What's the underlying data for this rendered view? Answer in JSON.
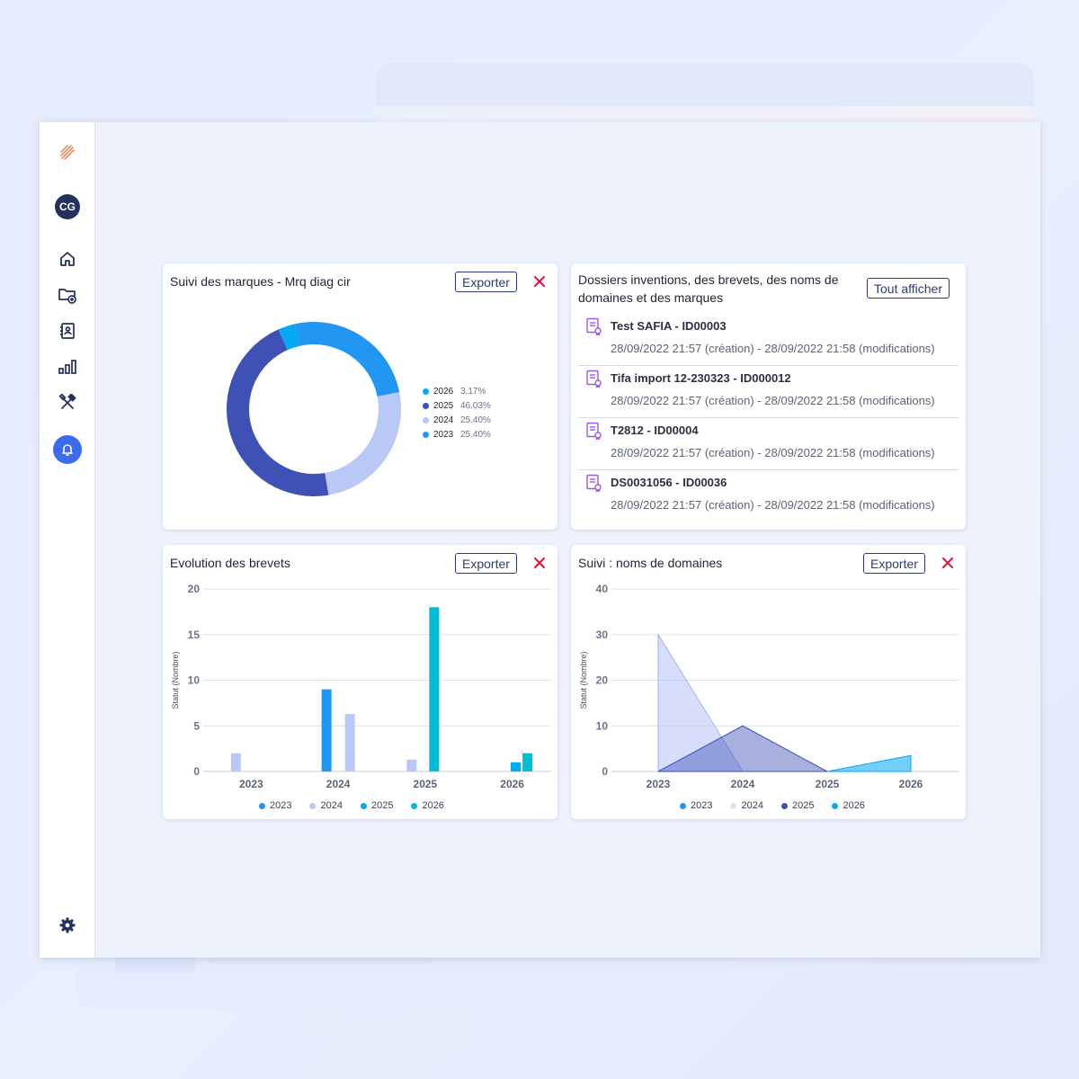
{
  "sidebar": {
    "avatar_initials": "CG",
    "items": [
      {
        "icon": "logo-icon"
      },
      {
        "icon": "home-icon"
      },
      {
        "icon": "folder-add-icon"
      },
      {
        "icon": "contacts-icon"
      },
      {
        "icon": "bar-chart-icon"
      },
      {
        "icon": "tools-icon"
      },
      {
        "icon": "bell-icon"
      },
      {
        "icon": "gear-icon"
      }
    ],
    "accent": "#3b6cf0",
    "logo_color": "#f08a5d"
  },
  "colors": {
    "c2023": "#2196f3",
    "c2024": "#bac8f8",
    "c2025": "#3f51b5",
    "c2026": "#03a9f4",
    "cyan": "#00bcd4",
    "close": "#e0143c"
  },
  "cards": {
    "marques": {
      "title": "Suivi des marques - Mrq diag cir",
      "export_label": "Exporter",
      "legend": [
        {
          "year": "2026",
          "pct": "3.17%",
          "color": "#03a9f4"
        },
        {
          "year": "2025",
          "pct": "46.03%",
          "color": "#3f51b5"
        },
        {
          "year": "2024",
          "pct": "25.40%",
          "color": "#bac8f8"
        },
        {
          "year": "2023",
          "pct": "25.40%",
          "color": "#2196f3"
        }
      ]
    },
    "dossiers": {
      "title": "Dossiers inventions, des brevets, des noms de domaines et des marques",
      "button_label": "Tout afficher",
      "items": [
        {
          "name": "Test SAFIA - ID00003",
          "date": "28/09/2022 21:57 (création) - 28/09/2022 21:58 (modifications)"
        },
        {
          "name": "Tifa import 12-230323 - ID000012",
          "date": "28/09/2022 21:57 (création) - 28/09/2022 21:58 (modifications)"
        },
        {
          "name": "T2812 - ID00004",
          "date": "28/09/2022 21:57 (création) - 28/09/2022 21:58 (modifications)"
        },
        {
          "name": "DS0031056 - ID00036",
          "date": "28/09/2022 21:57 (création) - 28/09/2022 21:58 (modifications)"
        }
      ]
    },
    "brevets": {
      "title": "Evolution des brevets",
      "export_label": "Exporter",
      "legend": [
        "2023",
        "2024",
        "2025",
        "2026"
      ]
    },
    "domaines": {
      "title": "Suivi : noms de domaines",
      "export_label": "Exporter",
      "legend": [
        "2023",
        "2024",
        "2025",
        "2026"
      ]
    }
  },
  "chart_data": [
    {
      "type": "pie",
      "title": "Suivi des marques - Mrq diag cir",
      "categories": [
        "2026",
        "2025",
        "2024",
        "2023"
      ],
      "values": [
        3.17,
        46.03,
        25.4,
        25.4
      ],
      "legend": "right"
    },
    {
      "type": "bar",
      "title": "Evolution des brevets",
      "categories": [
        "2023",
        "2024",
        "2025",
        "2026"
      ],
      "ylabel": "Statut (Nombre)",
      "ylim": [
        0,
        20
      ],
      "yticks": [
        0,
        5,
        10,
        15,
        20
      ],
      "series": [
        {
          "name": "2023",
          "values": [
            0,
            9,
            0,
            1
          ]
        },
        {
          "name": "2024",
          "values": [
            2,
            6.3,
            1.3,
            0
          ]
        },
        {
          "name": "2025",
          "values": [
            0,
            0,
            0,
            1
          ]
        },
        {
          "name": "2026",
          "values": [
            0,
            0,
            18,
            2
          ]
        }
      ],
      "grid": true,
      "legend": "bottom"
    },
    {
      "type": "area",
      "title": "Suivi : noms de domaines",
      "categories": [
        "2023",
        "2024",
        "2025",
        "2026"
      ],
      "ylabel": "Statut (Nombre)",
      "ylim": [
        0,
        40
      ],
      "yticks": [
        0,
        10,
        20,
        30,
        40
      ],
      "series": [
        {
          "name": "2023",
          "values": [
            0,
            0,
            0,
            0
          ]
        },
        {
          "name": "2024",
          "values": [
            30,
            0,
            0,
            0
          ]
        },
        {
          "name": "2025",
          "values": [
            0,
            10,
            0,
            0
          ]
        },
        {
          "name": "2026",
          "values": [
            0,
            0,
            0,
            3.5
          ]
        }
      ],
      "grid": true,
      "legend": "bottom"
    }
  ]
}
